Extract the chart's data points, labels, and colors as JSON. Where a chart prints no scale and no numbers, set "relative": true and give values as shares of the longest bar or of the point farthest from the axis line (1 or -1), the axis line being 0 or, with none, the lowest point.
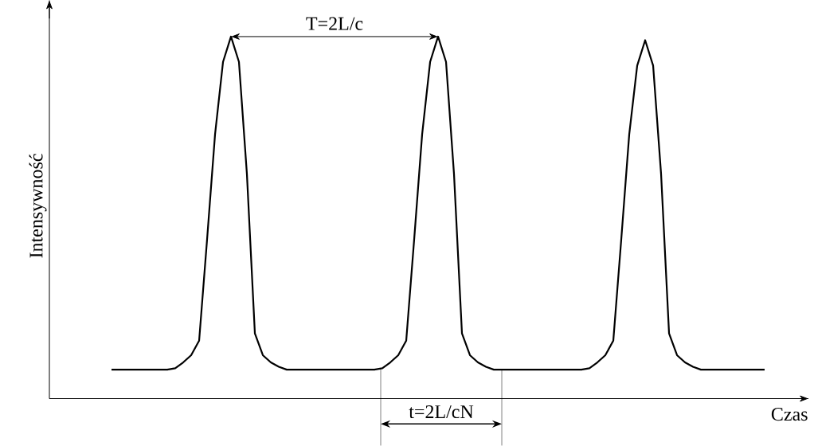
{
  "chart_data": {
    "type": "line",
    "relative": true,
    "xlabel": "Czas",
    "ylabel": "Intensywność",
    "color": "#000000",
    "marker": "none",
    "line_style": "solid",
    "categories": [
      null,
      null,
      null,
      null,
      null,
      null,
      null,
      null,
      null,
      null,
      null,
      null,
      null,
      null,
      null,
      null,
      null,
      null,
      null,
      null,
      null,
      null,
      null,
      null,
      null,
      null,
      null,
      null,
      null,
      null,
      null,
      null,
      null,
      null,
      null,
      null,
      null,
      null,
      null,
      null,
      null,
      null,
      null,
      null,
      null,
      null,
      null,
      null,
      null,
      null,
      null,
      null,
      null,
      null,
      null,
      null,
      null,
      null,
      null,
      null,
      null,
      null,
      null,
      null,
      null,
      null,
      null,
      null,
      null,
      null,
      null,
      null,
      null,
      null,
      null,
      null,
      null,
      null,
      null,
      null,
      null,
      null,
      null
    ],
    "values": [
      0.08,
      0.08,
      0.08,
      0.08,
      0.08,
      0.08,
      0.08,
      0.08,
      0.084,
      0.1,
      0.12,
      0.16,
      0.44,
      0.73,
      0.93,
      1,
      0.93,
      0.62,
      0.18,
      0.12,
      0.1,
      0.088,
      0.08,
      0.08,
      0.08,
      0.08,
      0.08,
      0.08,
      0.08,
      0.08,
      0.08,
      0.08,
      0.08,
      0.08,
      0.084,
      0.1,
      0.12,
      0.16,
      0.44,
      0.73,
      0.93,
      1,
      0.93,
      0.62,
      0.18,
      0.12,
      0.1,
      0.088,
      0.08,
      0.08,
      0.08,
      0.08,
      0.08,
      0.08,
      0.08,
      0.08,
      0.08,
      0.08,
      0.08,
      0.08,
      0.084,
      0.1,
      0.12,
      0.16,
      0.44,
      0.73,
      0.92,
      0.99,
      0.92,
      0.62,
      0.18,
      0.12,
      0.1,
      0.088,
      0.08,
      0.08,
      0.08,
      0.08,
      0.08,
      0.08,
      0.08,
      0.08,
      0.08
    ],
    "annotations": [
      "T=2L/c",
      "t=2L/cN"
    ]
  }
}
